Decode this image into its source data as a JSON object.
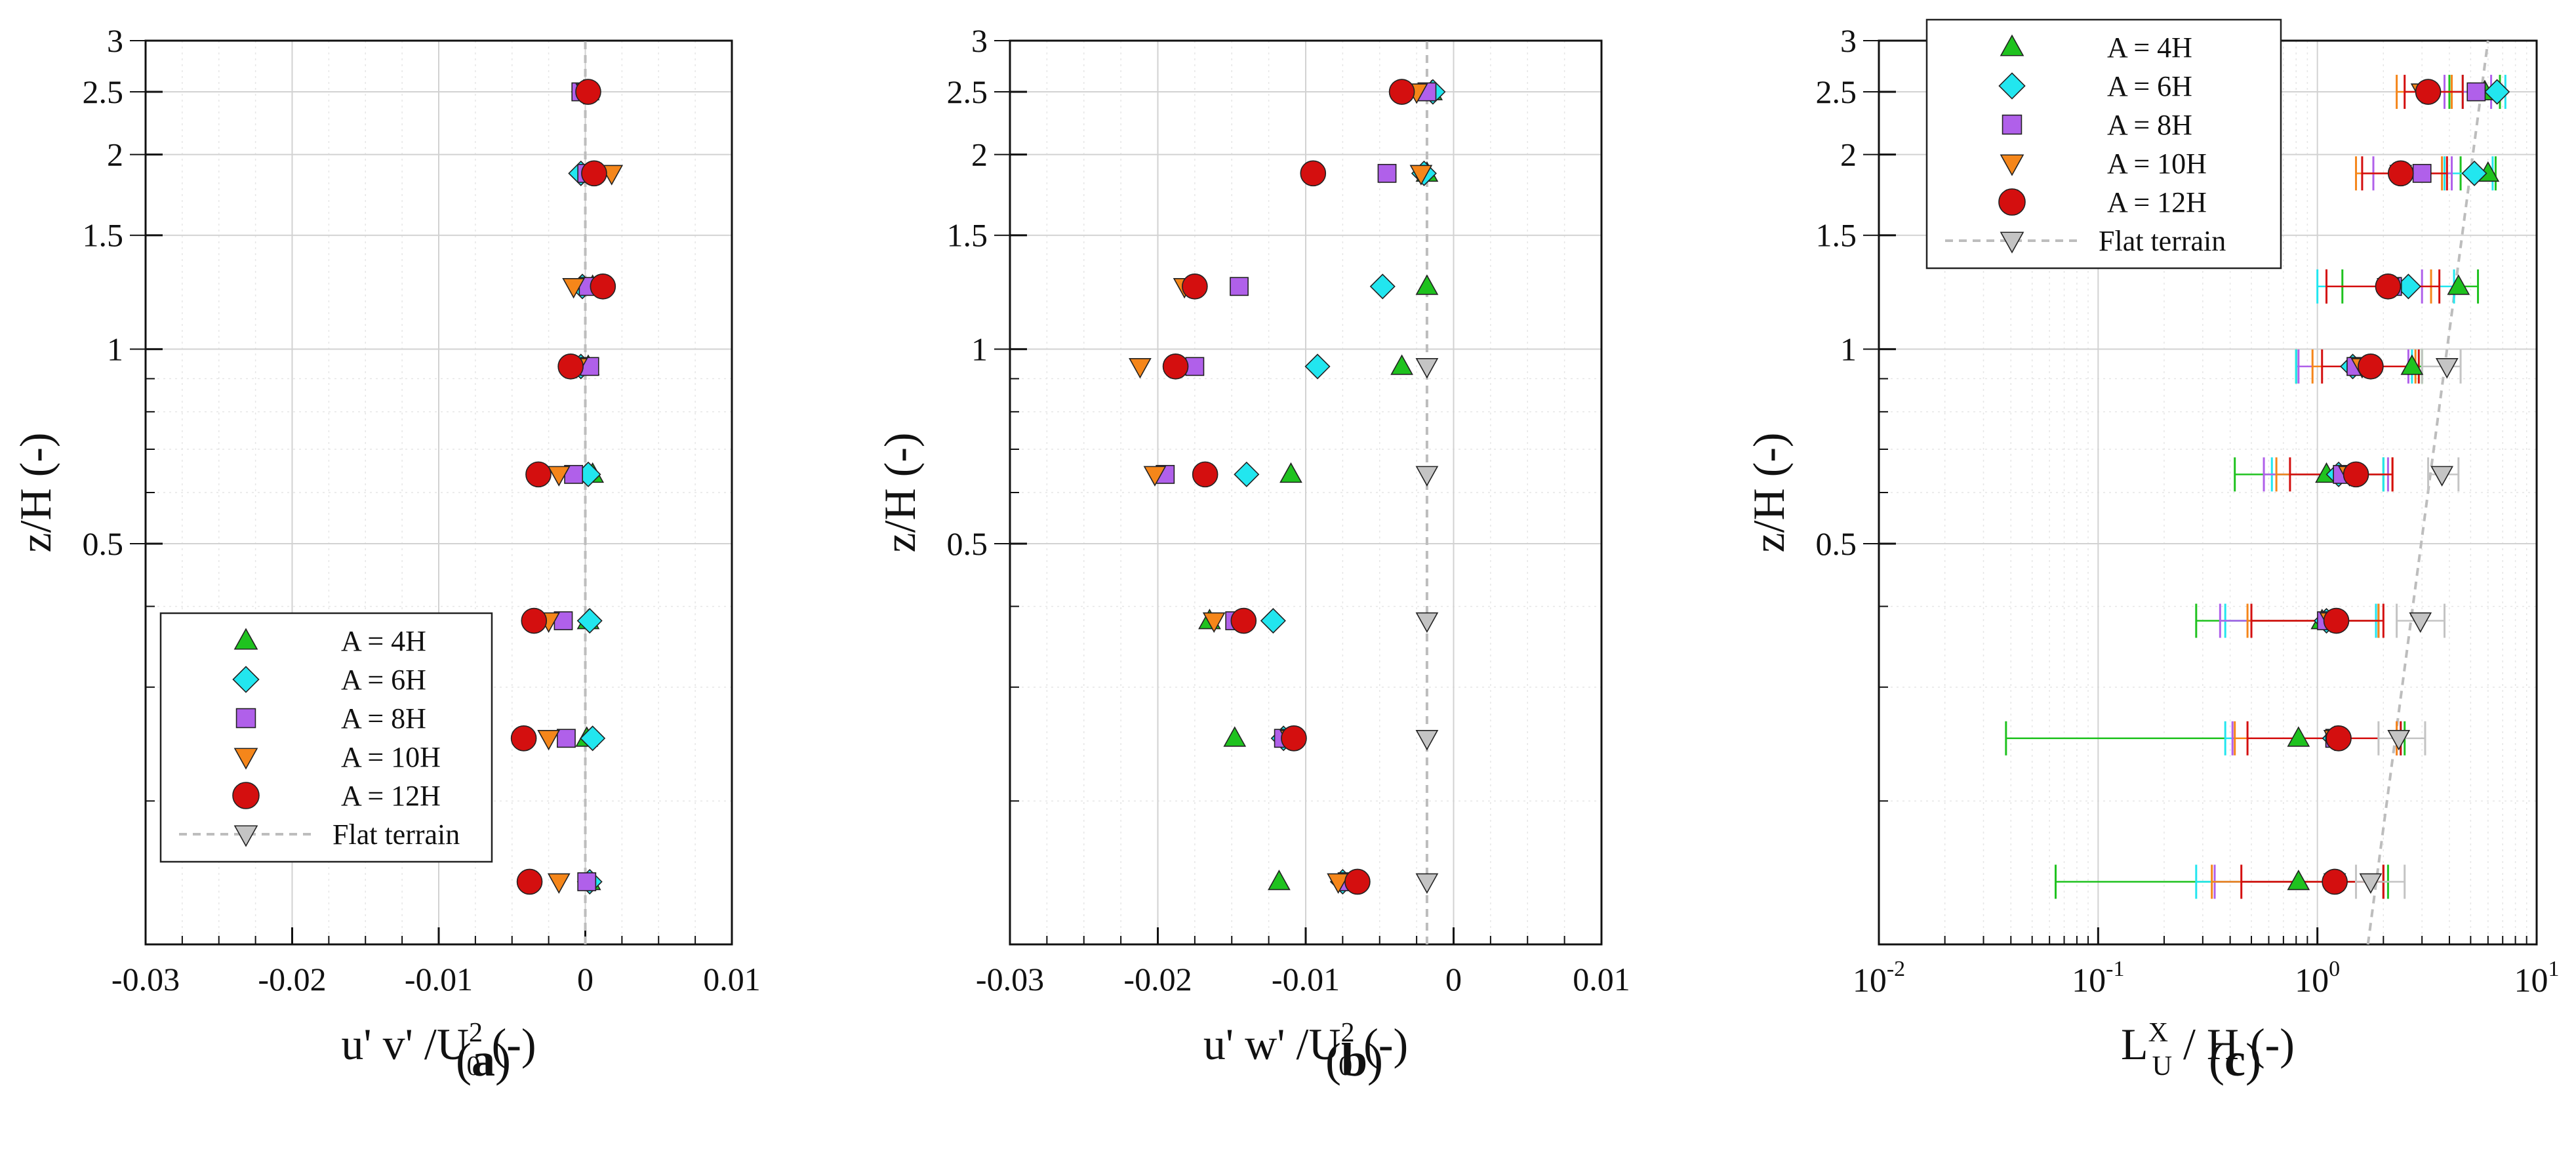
{
  "figure": {
    "captions": [
      {
        "open": "(",
        "letter": "a",
        "close": ")"
      },
      {
        "open": "(",
        "letter": "b",
        "close": ")"
      },
      {
        "open": "(",
        "letter": "c",
        "close": ")"
      }
    ]
  },
  "series_styles": [
    {
      "name": "A = 4H",
      "marker": "triangle-up",
      "color": "#1fc21f"
    },
    {
      "name": "A = 6H",
      "marker": "diamond",
      "color": "#22e6ef"
    },
    {
      "name": "A = 8H",
      "marker": "square",
      "color": "#b060ea"
    },
    {
      "name": "A = 10H",
      "marker": "triangle-down",
      "color": "#f5861a"
    },
    {
      "name": "A = 12H",
      "marker": "circle",
      "color": "#d40f0f"
    },
    {
      "name": "Flat terrain",
      "marker": "triangle-down",
      "color": "#c4c4c4"
    }
  ],
  "chart_data": [
    {
      "id": "a",
      "type": "scatter",
      "xscale": "linear",
      "yscale": "log",
      "xlim": [
        -0.03,
        0.01
      ],
      "ylim": [
        0.12,
        3
      ],
      "xticks": [
        -0.03,
        -0.02,
        -0.01,
        0,
        0.01
      ],
      "xtick_labels": [
        "-0.03",
        "-0.02",
        "-0.01",
        "0",
        "0.01"
      ],
      "yticks": [
        0.5,
        1,
        1.5,
        2,
        2.5,
        3
      ],
      "ytick_labels": [
        "0.5",
        "1",
        "1.5",
        "2",
        "2.5",
        "3"
      ],
      "ylabel": "z/H (-)",
      "xlabel": {
        "base": "u' v' /U",
        "sup": "2",
        "sub": "0",
        "tail": " (-)"
      },
      "legend": {
        "position": "lower-left",
        "entries": [
          "A = 4H",
          "A = 6H",
          "A = 8H",
          "A = 10H",
          "A = 12H",
          "Flat terrain"
        ]
      },
      "reference_line": {
        "label": "Flat terrain",
        "x": [
          0,
          0
        ],
        "y": [
          0.12,
          3
        ]
      },
      "series": [
        {
          "name": "A = 4H",
          "points": [
            [
              0.0003,
              0.15
            ],
            [
              0.0001,
              0.25
            ],
            [
              0.0002,
              0.38
            ],
            [
              0.0005,
              0.64
            ],
            [
              0.0002,
              0.94
            ],
            [
              0.0005,
              1.25
            ],
            [
              0.0004,
              1.87
            ],
            [
              0.0002,
              2.5
            ]
          ]
        },
        {
          "name": "A = 6H",
          "points": [
            [
              0.0003,
              0.15
            ],
            [
              0.0005,
              0.25
            ],
            [
              0.0003,
              0.38
            ],
            [
              0.0002,
              0.64
            ],
            [
              -0.0003,
              0.94
            ],
            [
              -0.0002,
              1.25
            ],
            [
              -0.0003,
              1.87
            ],
            [
              -0.0001,
              2.5
            ]
          ]
        },
        {
          "name": "A = 8H",
          "points": [
            [
              0.0001,
              0.15
            ],
            [
              -0.0013,
              0.25
            ],
            [
              -0.0015,
              0.38
            ],
            [
              -0.0008,
              0.64
            ],
            [
              0.0003,
              0.94
            ],
            [
              0.0002,
              1.25
            ],
            [
              0.0001,
              1.87
            ],
            [
              -0.0003,
              2.5
            ]
          ]
        },
        {
          "name": "A = 10H",
          "points": [
            [
              -0.0018,
              0.15
            ],
            [
              -0.0025,
              0.25
            ],
            [
              -0.0025,
              0.38
            ],
            [
              -0.0018,
              0.64
            ],
            [
              -0.0006,
              0.94
            ],
            [
              -0.0008,
              1.25
            ],
            [
              0.0018,
              1.87
            ],
            [
              0.0001,
              2.5
            ]
          ]
        },
        {
          "name": "A = 12H",
          "points": [
            [
              -0.0038,
              0.15
            ],
            [
              -0.0042,
              0.25
            ],
            [
              -0.0035,
              0.38
            ],
            [
              -0.0032,
              0.64
            ],
            [
              -0.001,
              0.94
            ],
            [
              0.0012,
              1.25
            ],
            [
              0.0006,
              1.87
            ],
            [
              0.0002,
              2.5
            ]
          ]
        }
      ]
    },
    {
      "id": "b",
      "type": "scatter",
      "xscale": "linear",
      "yscale": "log",
      "xlim": [
        -0.03,
        0.01
      ],
      "ylim": [
        0.12,
        3
      ],
      "xticks": [
        -0.03,
        -0.02,
        -0.01,
        0,
        0.01
      ],
      "xtick_labels": [
        "-0.03",
        "-0.02",
        "-0.01",
        "0",
        "0.01"
      ],
      "yticks": [
        0.5,
        1,
        1.5,
        2,
        2.5,
        3
      ],
      "ytick_labels": [
        "0.5",
        "1",
        "1.5",
        "2",
        "2.5",
        "3"
      ],
      "ylabel": "z/H (-)",
      "xlabel": {
        "base": "u' w' /U",
        "sup": "2",
        "sub": "0",
        "tail": " (-)"
      },
      "reference_line": {
        "label": "Flat terrain",
        "x": [
          -0.0018,
          -0.0018
        ],
        "y": [
          0.12,
          3
        ]
      },
      "series": [
        {
          "name": "A = 4H",
          "points": [
            [
              -0.0118,
              0.15
            ],
            [
              -0.0148,
              0.25
            ],
            [
              -0.0165,
              0.38
            ],
            [
              -0.011,
              0.64
            ],
            [
              -0.0035,
              0.94
            ],
            [
              -0.0018,
              1.25
            ],
            [
              -0.0018,
              1.87
            ],
            [
              -0.0015,
              2.5
            ]
          ]
        },
        {
          "name": "A = 6H",
          "points": [
            [
              -0.0075,
              0.15
            ],
            [
              -0.0115,
              0.25
            ],
            [
              -0.0122,
              0.38
            ],
            [
              -0.014,
              0.64
            ],
            [
              -0.0092,
              0.94
            ],
            [
              -0.0048,
              1.25
            ],
            [
              -0.002,
              1.87
            ],
            [
              -0.0014,
              2.5
            ]
          ]
        },
        {
          "name": "A = 8H",
          "points": [
            [
              -0.0072,
              0.15
            ],
            [
              -0.0115,
              0.25
            ],
            [
              -0.0148,
              0.38
            ],
            [
              -0.0195,
              0.64
            ],
            [
              -0.0175,
              0.94
            ],
            [
              -0.0145,
              1.25
            ],
            [
              -0.0045,
              1.87
            ],
            [
              -0.0018,
              2.5
            ]
          ]
        },
        {
          "name": "A = 10H",
          "points": [
            [
              -0.0078,
              0.15
            ],
            [
              -0.011,
              0.25
            ],
            [
              -0.0162,
              0.38
            ],
            [
              -0.0202,
              0.64
            ],
            [
              -0.0212,
              0.94
            ],
            [
              -0.0182,
              1.25
            ],
            [
              -0.0022,
              1.87
            ],
            [
              -0.0025,
              2.5
            ]
          ]
        },
        {
          "name": "A = 12H",
          "points": [
            [
              -0.0065,
              0.15
            ],
            [
              -0.0108,
              0.25
            ],
            [
              -0.0142,
              0.38
            ],
            [
              -0.0168,
              0.64
            ],
            [
              -0.0188,
              0.94
            ],
            [
              -0.0175,
              1.25
            ],
            [
              -0.0095,
              1.87
            ],
            [
              -0.0035,
              2.5
            ]
          ]
        },
        {
          "name": "Flat terrain",
          "points": [
            [
              -0.0018,
              0.15
            ],
            [
              -0.0018,
              0.25
            ],
            [
              -0.0018,
              0.38
            ],
            [
              -0.0018,
              0.64
            ],
            [
              -0.0018,
              0.94
            ]
          ]
        }
      ]
    },
    {
      "id": "c",
      "type": "scatter",
      "xscale": "log",
      "yscale": "log",
      "xlim": [
        0.01,
        10
      ],
      "ylim": [
        0.12,
        3
      ],
      "xticks": [
        0.01,
        0.1,
        1,
        10
      ],
      "xtick_labels": [
        {
          "base": "10",
          "exp": "-2"
        },
        {
          "base": "10",
          "exp": "-1"
        },
        {
          "base": "10",
          "exp": "0"
        },
        {
          "base": "10",
          "exp": "1"
        }
      ],
      "yticks": [
        0.5,
        1,
        1.5,
        2,
        2.5,
        3
      ],
      "ytick_labels": [
        "0.5",
        "1",
        "1.5",
        "2",
        "2.5",
        "3"
      ],
      "ylabel": "z/H (-)",
      "xlabel": {
        "base": "L",
        "sup": "X",
        "sub": "U",
        "tail": " / H (-)"
      },
      "legend": {
        "position": "top-left",
        "entries": [
          "A = 4H",
          "A = 6H",
          "A = 8H",
          "A = 10H",
          "A = 12H",
          "Flat terrain"
        ]
      },
      "reference_line": {
        "label": "Flat terrain",
        "x": [
          1.7,
          6.0
        ],
        "y": [
          0.12,
          3
        ]
      },
      "series": [
        {
          "name": "A = 4H",
          "points": [
            [
              0.82,
              0.15
            ],
            [
              0.82,
              0.25
            ],
            [
              1.05,
              0.38
            ],
            [
              1.1,
              0.64
            ],
            [
              2.7,
              0.94
            ],
            [
              4.4,
              1.25
            ],
            [
              6.0,
              1.87
            ],
            [
              5.8,
              2.5
            ]
          ],
          "xerr": [
            [
              0.064,
              2.1
            ],
            [
              0.038,
              2.5
            ],
            [
              0.28,
              1.9
            ],
            [
              0.42,
              2.0
            ],
            [
              0.8,
              3.0
            ],
            [
              1.3,
              5.4
            ],
            [
              4.5,
              6.5
            ],
            [
              4.0,
              6.8
            ]
          ]
        },
        {
          "name": "A = 6H",
          "points": [
            [
              1.2,
              0.15
            ],
            [
              1.2,
              0.25
            ],
            [
              1.1,
              0.38
            ],
            [
              1.25,
              0.64
            ],
            [
              1.45,
              0.94
            ],
            [
              2.6,
              1.25
            ],
            [
              5.2,
              1.87
            ],
            [
              6.6,
              2.5
            ]
          ],
          "xerr": [
            [
              0.28,
              2.0
            ],
            [
              0.38,
              2.4
            ],
            [
              0.38,
              1.85
            ],
            [
              0.62,
              2.0
            ],
            [
              0.8,
              2.7
            ],
            [
              1.0,
              4.2
            ],
            [
              3.8,
              6.3
            ],
            [
              4.6,
              7.2
            ]
          ]
        },
        {
          "name": "A = 8H",
          "points": [
            [
              1.2,
              0.15
            ],
            [
              1.2,
              0.25
            ],
            [
              1.1,
              0.38
            ],
            [
              1.3,
              0.64
            ],
            [
              1.5,
              0.94
            ],
            [
              2.2,
              1.25
            ],
            [
              3.0,
              1.87
            ],
            [
              5.3,
              2.5
            ]
          ],
          "xerr": [
            [
              0.34,
              2.0
            ],
            [
              0.41,
              2.3
            ],
            [
              0.36,
              1.9
            ],
            [
              0.57,
              2.1
            ],
            [
              0.82,
              2.6
            ],
            [
              1.1,
              3.0
            ],
            [
              1.8,
              4.1
            ],
            [
              3.8,
              6.2
            ]
          ]
        },
        {
          "name": "A = 10H",
          "points": [
            [
              1.2,
              0.15
            ],
            [
              1.2,
              0.25
            ],
            [
              1.15,
              0.38
            ],
            [
              1.4,
              0.64
            ],
            [
              1.6,
              0.94
            ],
            [
              2.1,
              1.25
            ],
            [
              2.4,
              1.87
            ],
            [
              3.0,
              2.5
            ]
          ],
          "xerr": [
            [
              0.33,
              2.0
            ],
            [
              0.42,
              2.3
            ],
            [
              0.48,
              1.9
            ],
            [
              0.65,
              2.2
            ],
            [
              0.95,
              2.8
            ],
            [
              1.1,
              3.3
            ],
            [
              1.5,
              3.7
            ],
            [
              2.3,
              4.1
            ]
          ]
        },
        {
          "name": "A = 12H",
          "points": [
            [
              1.2,
              0.15
            ],
            [
              1.25,
              0.25
            ],
            [
              1.22,
              0.38
            ],
            [
              1.5,
              0.64
            ],
            [
              1.75,
              0.94
            ],
            [
              2.1,
              1.25
            ],
            [
              2.4,
              1.87
            ],
            [
              3.2,
              2.5
            ]
          ],
          "xerr": [
            [
              0.45,
              2.0
            ],
            [
              0.48,
              2.4
            ],
            [
              0.5,
              2.0
            ],
            [
              0.75,
              2.2
            ],
            [
              1.05,
              2.9
            ],
            [
              1.1,
              3.6
            ],
            [
              1.6,
              3.9
            ],
            [
              2.5,
              4.6
            ]
          ]
        },
        {
          "name": "Flat terrain",
          "points": [
            [
              1.75,
              0.15
            ],
            [
              2.35,
              0.25
            ],
            [
              2.95,
              0.38
            ],
            [
              3.7,
              0.64
            ],
            [
              3.9,
              0.94
            ]
          ],
          "xerr": [
            [
              1.5,
              2.5
            ],
            [
              1.9,
              3.1
            ],
            [
              2.3,
              3.8
            ],
            [
              3.2,
              4.4
            ],
            [
              3.0,
              4.5
            ]
          ]
        }
      ]
    }
  ]
}
